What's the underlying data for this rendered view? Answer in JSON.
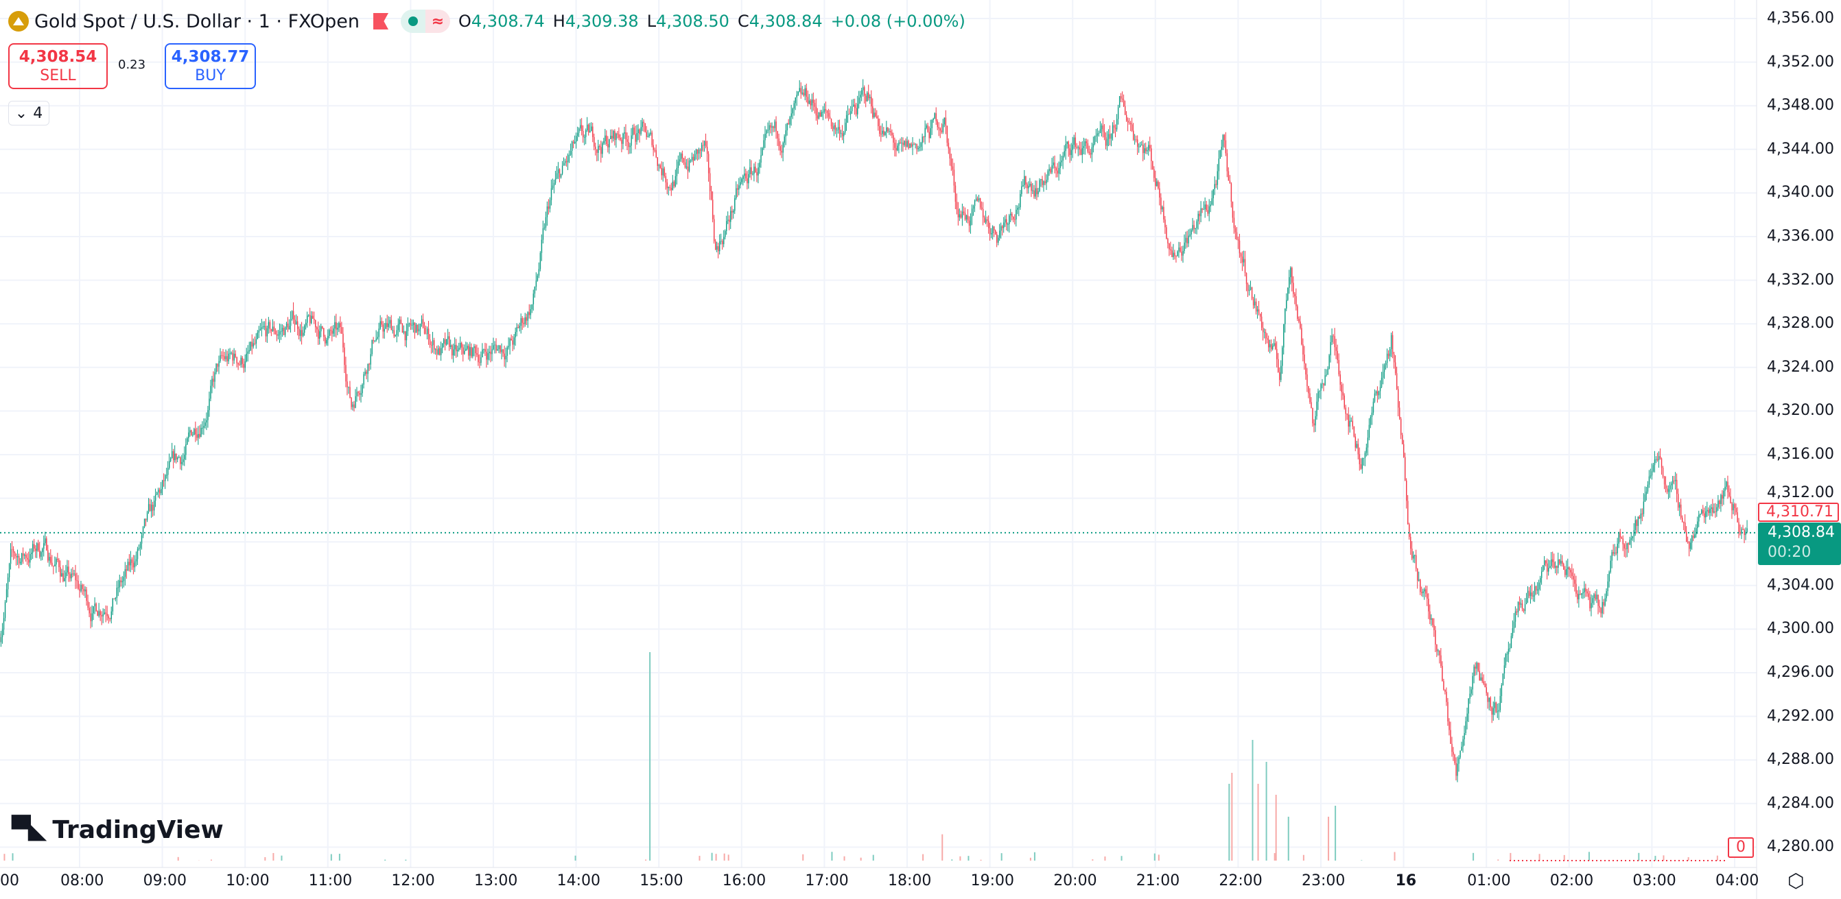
{
  "header": {
    "symbol_icon": "gold-bars-icon",
    "title": "Gold Spot / U.S. Dollar · 1 · FXOpen",
    "flag_icon": "flag-icon",
    "status_icon": "market-status-icon",
    "ohlc": {
      "o_label": "O",
      "o": "4,308.74",
      "h_label": "H",
      "h": "4,309.38",
      "l_label": "L",
      "l": "4,308.50",
      "c_label": "C",
      "c": "4,308.84",
      "change": "+0.08 (+0.00%)"
    }
  },
  "trade": {
    "sell_price": "4,308.54",
    "sell_label": "SELL",
    "spread": "0.23",
    "buy_price": "4,308.77",
    "buy_label": "BUY"
  },
  "indicators_toggle": {
    "icon": "chevron-down-icon",
    "count": "4"
  },
  "logo": {
    "text": "TradingView",
    "mark": "TV"
  },
  "price_axis": {
    "labels": [
      "4,356.00",
      "4,352.00",
      "4,348.00",
      "4,344.00",
      "4,340.00",
      "4,336.00",
      "4,332.00",
      "4,328.00",
      "4,324.00",
      "4,320.00",
      "4,316.00",
      "4,312.00",
      "4,304.00",
      "4,300.00",
      "4,296.00",
      "4,292.00",
      "4,288.00",
      "4,284.00",
      "4,280.00"
    ]
  },
  "time_axis": {
    "labels": [
      "00",
      "08:00",
      "09:00",
      "10:00",
      "11:00",
      "12:00",
      "13:00",
      "14:00",
      "15:00",
      "16:00",
      "17:00",
      "18:00",
      "19:00",
      "20:00",
      "21:00",
      "22:00",
      "23:00",
      "16",
      "01:00",
      "02:00",
      "03:00",
      "04:00"
    ]
  },
  "tags": {
    "high_marker": "4,310.71",
    "last_price": "4,308.84",
    "countdown": "00:20",
    "volume_zero": "0"
  },
  "colors": {
    "up": "#089981",
    "down": "#f23645",
    "accent": "#2962ff",
    "gold": "#d79d0a"
  },
  "settings_icon": "settings-hex-icon",
  "chart_data": {
    "type": "candlestick",
    "interval": "1 minute",
    "ylim": [
      4280,
      4356
    ],
    "price_path": [
      [
        "07:02",
        4299.6
      ],
      [
        "07:10",
        4306
      ],
      [
        "07:33",
        4307.7
      ],
      [
        "08:10",
        4301.8
      ],
      [
        "08:36",
        4305
      ],
      [
        "09:01",
        4312.5
      ],
      [
        "09:18",
        4316.3
      ],
      [
        "09:40",
        4323.8
      ],
      [
        "10:09",
        4325.4
      ],
      [
        "10:35",
        4328.1
      ],
      [
        "11:09",
        4326.5
      ],
      [
        "11:17",
        4320.6
      ],
      [
        "11:34",
        4327.6
      ],
      [
        "12:08",
        4327
      ],
      [
        "12:34",
        4324.4
      ],
      [
        "13:16",
        4326.5
      ],
      [
        "13:29",
        4330.3
      ],
      [
        "13:42",
        4339.4
      ],
      [
        "13:59",
        4343.7
      ],
      [
        "14:46",
        4345.9
      ],
      [
        "15:07",
        4341.6
      ],
      [
        "15:33",
        4343.7
      ],
      [
        "15:41",
        4334.6
      ],
      [
        "15:58",
        4340
      ],
      [
        "16:28",
        4344.8
      ],
      [
        "16:49",
        4348
      ],
      [
        "17:10",
        4345.9
      ],
      [
        "17:31",
        4348.6
      ],
      [
        "17:57",
        4342.7
      ],
      [
        "18:27",
        4347
      ],
      [
        "18:36",
        4338.9
      ],
      [
        "19:05",
        4336.7
      ],
      [
        "19:22",
        4340.5
      ],
      [
        "19:48",
        4342.1
      ],
      [
        "20:00",
        4344.3
      ],
      [
        "20:26",
        4343.7
      ],
      [
        "20:34",
        4347.5
      ],
      [
        "20:55",
        4344.3
      ],
      [
        "21:13",
        4335.1
      ],
      [
        "21:38",
        4338.4
      ],
      [
        "21:49",
        4343.7
      ],
      [
        "22:00",
        4335.1
      ],
      [
        "22:13",
        4329.7
      ],
      [
        "22:30",
        4323.3
      ],
      [
        "22:38",
        4334
      ],
      [
        "22:55",
        4319
      ],
      [
        "23:08",
        4326.5
      ],
      [
        "23:29",
        4315.8
      ],
      [
        "23:51",
        4326.5
      ],
      [
        "00:03",
        4310.4
      ],
      [
        "00:12",
        4305
      ],
      [
        "00:25",
        4297.5
      ],
      [
        "00:38",
        4286.2
      ],
      [
        "00:51",
        4297.5
      ],
      [
        "01:07",
        4293.2
      ],
      [
        "01:29",
        4302.8
      ],
      [
        "01:54",
        4306
      ],
      [
        "02:23",
        4300.7
      ],
      [
        "02:36",
        4308.2
      ],
      [
        "02:53",
        4310.4
      ],
      [
        "03:03",
        4316.8
      ],
      [
        "03:27",
        4308.2
      ],
      [
        "03:52",
        4313.6
      ],
      [
        "04:09",
        4308.84
      ]
    ],
    "volume_spikes": [
      [
        "14:53",
        0.95
      ],
      [
        "18:25",
        0.12
      ],
      [
        "21:53",
        0.35
      ],
      [
        "21:55",
        0.4
      ],
      [
        "22:10",
        0.55
      ],
      [
        "22:14",
        0.35
      ],
      [
        "22:20",
        0.45
      ],
      [
        "22:27",
        0.3
      ],
      [
        "22:36",
        0.2
      ],
      [
        "23:05",
        0.2
      ],
      [
        "23:10",
        0.25
      ]
    ],
    "last_price": 4308.84,
    "high_marker": 4310.71
  }
}
